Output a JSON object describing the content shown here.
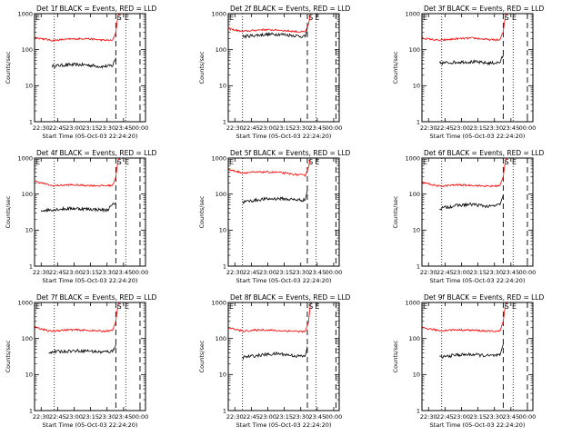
{
  "figure": {
    "title_template": "Det {d}f BLACK = Events, RED = LLD",
    "xlabel": "Start Time (05-Oct-03 22:24:20)",
    "ylabel": "Counts/sec",
    "start_label": "S",
    "end_label": "E"
  },
  "chart_data": [
    {
      "type": "line",
      "title": "Det 1f BLACK = Events, RED = LLD",
      "xlabel": "Start Time (05-Oct-03 22:24:20)",
      "ylabel": "Counts/sec",
      "yscale": "log",
      "ylim": [
        1,
        1000
      ],
      "xlim": [
        "22:24",
        "00:05"
      ],
      "x_ticks": [
        "22:30",
        "22:45",
        "23:00",
        "23:15",
        "23:30",
        "23:45",
        "00:00"
      ],
      "y_ticks": [
        "1",
        "10",
        "100",
        "1000"
      ],
      "vlines": {
        "dotted": [
          "22:42",
          "23:47"
        ],
        "dashed": [
          "23:38",
          "00:00"
        ]
      },
      "markers": {
        "S": "23:39",
        "E": "23:46"
      },
      "series": [
        {
          "name": "Events",
          "color": "#000000",
          "x": [
            "22:40",
            "22:55",
            "23:10",
            "23:25",
            "23:35",
            "23:38"
          ],
          "values": [
            35,
            38,
            38,
            34,
            36,
            60
          ]
        },
        {
          "name": "LLD",
          "color": "#ff0000",
          "x": [
            "22:24",
            "22:40",
            "22:55",
            "23:10",
            "23:25",
            "23:35",
            "23:38",
            "23:40",
            "23:42"
          ],
          "values": [
            220,
            180,
            195,
            205,
            185,
            180,
            300,
            900,
            1000
          ]
        }
      ]
    },
    {
      "type": "line",
      "title": "Det 2f BLACK = Events, RED = LLD",
      "xlabel": "Start Time (05-Oct-03 22:24:20)",
      "ylabel": "Counts/sec",
      "yscale": "log",
      "ylim": [
        1,
        1000
      ],
      "xlim": [
        "22:24",
        "00:05"
      ],
      "x_ticks": [
        "22:30",
        "22:45",
        "23:00",
        "23:15",
        "23:30",
        "23:45",
        "00:00"
      ],
      "y_ticks": [
        "1",
        "10",
        "100",
        "1000"
      ],
      "vlines": {
        "dotted": [
          "22:37",
          "23:44"
        ],
        "dashed": [
          "23:36",
          "00:02"
        ]
      },
      "markers": {
        "S": "23:37",
        "E": "23:43"
      },
      "series": [
        {
          "name": "Events",
          "color": "#000000",
          "x": [
            "22:37",
            "22:55",
            "23:10",
            "23:25",
            "23:34",
            "23:36"
          ],
          "values": [
            230,
            260,
            270,
            245,
            230,
            400
          ]
        },
        {
          "name": "LLD",
          "color": "#ff0000",
          "x": [
            "22:24",
            "22:37",
            "22:55",
            "23:10",
            "23:25",
            "23:34",
            "23:37",
            "23:39",
            "23:41"
          ],
          "values": [
            380,
            320,
            360,
            350,
            320,
            310,
            500,
            1000,
            1000
          ]
        }
      ]
    },
    {
      "type": "line",
      "title": "Det 3f BLACK = Events, RED = LLD",
      "xlabel": "Start Time (05-Oct-03 22:24:20)",
      "ylabel": "Counts/sec",
      "yscale": "log",
      "ylim": [
        1,
        1000
      ],
      "xlim": [
        "22:24",
        "00:05"
      ],
      "x_ticks": [
        "22:30",
        "22:45",
        "23:00",
        "23:15",
        "23:30",
        "23:45",
        "00:00"
      ],
      "y_ticks": [
        "1",
        "10",
        "100",
        "1000"
      ],
      "vlines": {
        "dotted": [
          "22:42",
          "23:47"
        ],
        "dashed": [
          "23:38",
          "00:00"
        ]
      },
      "markers": {
        "S": "23:39",
        "E": "23:46"
      },
      "series": [
        {
          "name": "Events",
          "color": "#000000",
          "x": [
            "22:40",
            "22:55",
            "23:10",
            "23:25",
            "23:35",
            "23:38"
          ],
          "values": [
            42,
            45,
            46,
            42,
            44,
            70
          ]
        },
        {
          "name": "LLD",
          "color": "#ff0000",
          "x": [
            "22:24",
            "22:40",
            "22:55",
            "23:10",
            "23:25",
            "23:35",
            "23:38",
            "23:40",
            "23:42"
          ],
          "values": [
            210,
            180,
            200,
            210,
            190,
            185,
            320,
            900,
            1000
          ]
        }
      ]
    },
    {
      "type": "line",
      "title": "Det 4f BLACK = Events, RED = LLD",
      "xlabel": "Start Time (05-Oct-03 22:24:20)",
      "ylabel": "Counts/sec",
      "yscale": "log",
      "ylim": [
        1,
        1000
      ],
      "xlim": [
        "22:24",
        "00:05"
      ],
      "x_ticks": [
        "22:30",
        "22:45",
        "23:00",
        "23:15",
        "23:30",
        "23:45",
        "00:00"
      ],
      "y_ticks": [
        "1",
        "10",
        "100",
        "1000"
      ],
      "vlines": {
        "dotted": [
          "22:42",
          "23:47"
        ],
        "dashed": [
          "23:38",
          "00:00"
        ]
      },
      "markers": {
        "S": "23:39",
        "E": "23:46"
      },
      "series": [
        {
          "name": "Events",
          "color": "#000000",
          "x": [
            "22:30",
            "22:45",
            "23:00",
            "23:15",
            "23:30",
            "23:38"
          ],
          "values": [
            35,
            38,
            40,
            38,
            36,
            60
          ]
        },
        {
          "name": "LLD",
          "color": "#ff0000",
          "x": [
            "22:24",
            "22:40",
            "22:55",
            "23:10",
            "23:25",
            "23:35",
            "23:38",
            "23:40",
            "23:42"
          ],
          "values": [
            230,
            170,
            180,
            175,
            170,
            175,
            300,
            900,
            1000
          ]
        }
      ]
    },
    {
      "type": "line",
      "title": "Det 5f BLACK = Events, RED = LLD",
      "xlabel": "Start Time (05-Oct-03 22:24:20)",
      "ylabel": "Counts/sec",
      "yscale": "log",
      "ylim": [
        1,
        1000
      ],
      "xlim": [
        "22:24",
        "00:05"
      ],
      "x_ticks": [
        "22:30",
        "22:45",
        "23:00",
        "23:15",
        "23:30",
        "23:45",
        "00:00"
      ],
      "y_ticks": [
        "1",
        "10",
        "100",
        "1000"
      ],
      "vlines": {
        "dotted": [
          "22:37",
          "23:44"
        ],
        "dashed": [
          "23:36",
          "00:02"
        ]
      },
      "markers": {
        "S": "23:37",
        "E": "23:43"
      },
      "series": [
        {
          "name": "Events",
          "color": "#000000",
          "x": [
            "22:37",
            "22:55",
            "23:10",
            "23:25",
            "23:34",
            "23:36"
          ],
          "values": [
            60,
            72,
            75,
            70,
            68,
            130
          ]
        },
        {
          "name": "LLD",
          "color": "#ff0000",
          "x": [
            "22:24",
            "22:37",
            "22:55",
            "23:10",
            "23:25",
            "23:34",
            "23:37",
            "23:39",
            "23:41"
          ],
          "values": [
            480,
            390,
            410,
            400,
            350,
            330,
            550,
            1000,
            1000
          ]
        }
      ]
    },
    {
      "type": "line",
      "title": "Det 6f BLACK = Events, RED = LLD",
      "xlabel": "Start Time (05-Oct-03 22:24:20)",
      "ylabel": "Counts/sec",
      "yscale": "log",
      "ylim": [
        1,
        1000
      ],
      "xlim": [
        "22:24",
        "00:05"
      ],
      "x_ticks": [
        "22:30",
        "22:45",
        "23:00",
        "23:15",
        "23:30",
        "23:45",
        "00:00"
      ],
      "y_ticks": [
        "1",
        "10",
        "100",
        "1000"
      ],
      "vlines": {
        "dotted": [
          "22:42",
          "23:47"
        ],
        "dashed": [
          "23:38",
          "00:00"
        ]
      },
      "markers": {
        "S": "23:39",
        "E": "23:46"
      },
      "series": [
        {
          "name": "Events",
          "color": "#000000",
          "x": [
            "22:40",
            "22:55",
            "23:10",
            "23:25",
            "23:35",
            "23:38"
          ],
          "values": [
            40,
            48,
            52,
            45,
            50,
            95
          ]
        },
        {
          "name": "LLD",
          "color": "#ff0000",
          "x": [
            "22:24",
            "22:40",
            "22:55",
            "23:10",
            "23:25",
            "23:35",
            "23:38",
            "23:40",
            "23:42"
          ],
          "values": [
            210,
            165,
            180,
            175,
            165,
            170,
            300,
            900,
            1000
          ]
        }
      ]
    },
    {
      "type": "line",
      "title": "Det 7f BLACK = Events, RED = LLD",
      "xlabel": "Start Time (05-Oct-03 22:24:20)",
      "ylabel": "Counts/sec",
      "yscale": "log",
      "ylim": [
        1,
        1000
      ],
      "xlim": [
        "22:24",
        "00:05"
      ],
      "x_ticks": [
        "22:30",
        "22:45",
        "23:00",
        "23:15",
        "23:30",
        "23:45",
        "00:00"
      ],
      "y_ticks": [
        "1",
        "10",
        "100",
        "1000"
      ],
      "vlines": {
        "dotted": [
          "22:42",
          "23:47"
        ],
        "dashed": [
          "23:38",
          "00:00"
        ]
      },
      "markers": {
        "S": "23:39",
        "E": "23:46"
      },
      "series": [
        {
          "name": "Events",
          "color": "#000000",
          "x": [
            "22:37",
            "22:55",
            "23:10",
            "23:25",
            "23:35",
            "23:38"
          ],
          "values": [
            42,
            45,
            46,
            42,
            44,
            70
          ]
        },
        {
          "name": "LLD",
          "color": "#ff0000",
          "x": [
            "22:24",
            "22:37",
            "22:55",
            "23:10",
            "23:25",
            "23:35",
            "23:38",
            "23:40",
            "23:42"
          ],
          "values": [
            210,
            160,
            175,
            170,
            160,
            165,
            300,
            900,
            1000
          ]
        }
      ]
    },
    {
      "type": "line",
      "title": "Det 8f BLACK = Events, RED = LLD",
      "xlabel": "Start Time (05-Oct-03 22:24:20)",
      "ylabel": "Counts/sec",
      "yscale": "log",
      "ylim": [
        1,
        1000
      ],
      "xlim": [
        "22:24",
        "00:05"
      ],
      "x_ticks": [
        "22:30",
        "22:45",
        "23:00",
        "23:15",
        "23:30",
        "23:45",
        "00:00"
      ],
      "y_ticks": [
        "1",
        "10",
        "100",
        "1000"
      ],
      "vlines": {
        "dotted": [
          "22:37",
          "23:44"
        ],
        "dashed": [
          "23:36",
          "00:02"
        ]
      },
      "markers": {
        "S": "23:37",
        "E": "23:43"
      },
      "series": [
        {
          "name": "Events",
          "color": "#000000",
          "x": [
            "22:37",
            "22:55",
            "23:10",
            "23:25",
            "23:34",
            "23:36"
          ],
          "values": [
            30,
            35,
            38,
            33,
            32,
            60
          ]
        },
        {
          "name": "LLD",
          "color": "#ff0000",
          "x": [
            "22:24",
            "22:37",
            "22:55",
            "23:10",
            "23:25",
            "23:34",
            "23:37",
            "23:39",
            "23:41"
          ],
          "values": [
            200,
            160,
            175,
            165,
            160,
            155,
            280,
            1000,
            1000
          ]
        }
      ]
    },
    {
      "type": "line",
      "title": "Det 9f BLACK = Events, RED = LLD",
      "xlabel": "Start Time (05-Oct-03 22:24:20)",
      "ylabel": "Counts/sec",
      "yscale": "log",
      "ylim": [
        1,
        1000
      ],
      "xlim": [
        "22:24",
        "00:05"
      ],
      "x_ticks": [
        "22:30",
        "22:45",
        "23:00",
        "23:15",
        "23:30",
        "23:45",
        "00:00"
      ],
      "y_ticks": [
        "1",
        "10",
        "100",
        "1000"
      ],
      "vlines": {
        "dotted": [
          "22:42",
          "23:47"
        ],
        "dashed": [
          "23:38",
          "00:00"
        ]
      },
      "markers": {
        "S": "23:39",
        "E": "23:46"
      },
      "series": [
        {
          "name": "Events",
          "color": "#000000",
          "x": [
            "22:40",
            "22:55",
            "23:10",
            "23:25",
            "23:35",
            "23:38"
          ],
          "values": [
            30,
            35,
            36,
            33,
            34,
            70
          ]
        },
        {
          "name": "LLD",
          "color": "#ff0000",
          "x": [
            "22:24",
            "22:40",
            "22:55",
            "23:10",
            "23:25",
            "23:35",
            "23:38",
            "23:40",
            "23:42"
          ],
          "values": [
            200,
            165,
            175,
            170,
            160,
            160,
            300,
            900,
            1000
          ]
        }
      ]
    }
  ]
}
